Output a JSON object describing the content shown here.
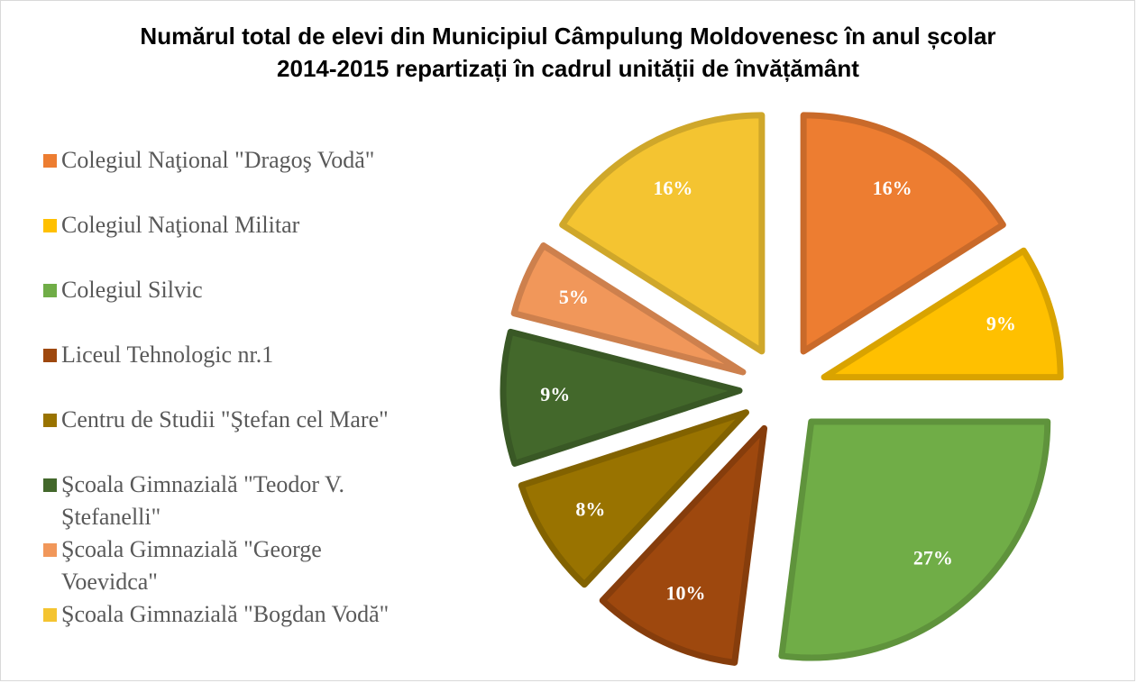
{
  "chart_data": {
    "type": "pie",
    "title": "Numărul total de elevi din Municipiul Câmpulung Moldovenesc în anul școlar 2014-2015 repartizați în cadrul unității de învățământ",
    "categories": [
      "Colegiul Naţional \"Dragoş Vodă\"",
      "Colegiul Naţional Militar",
      "Colegiul Silvic",
      "Liceul Tehnologic nr.1",
      "Centru de Studii \"Ştefan cel Mare\"",
      "Şcoala Gimnazială \"Teodor V. Ştefanelli\"",
      "Şcoala Gimnazială \"George Voevidca\"",
      "Şcoala Gimnazială \"Bogdan Vodă\""
    ],
    "values": [
      16,
      9,
      27,
      10,
      8,
      9,
      5,
      16
    ],
    "value_labels": [
      "16%",
      "9%",
      "27%",
      "10%",
      "8%",
      "9%",
      "5%",
      "16%"
    ],
    "colors": [
      "#ed7d31",
      "#ffc000",
      "#70ad47",
      "#9e480e",
      "#997300",
      "#43682b",
      "#f1975a",
      "#f4c431"
    ],
    "legend": "left"
  }
}
